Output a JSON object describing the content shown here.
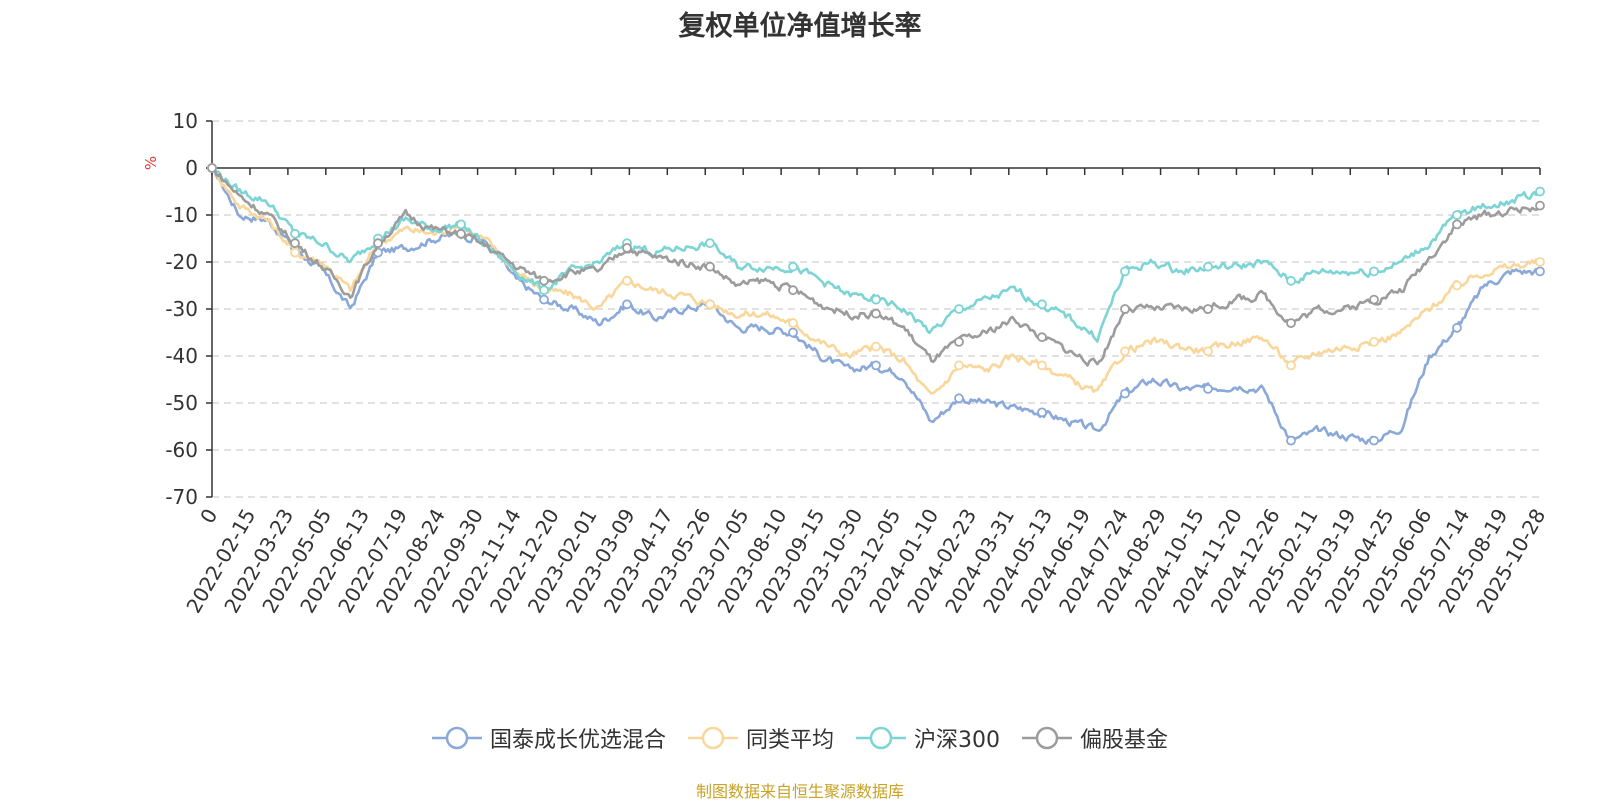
{
  "chart_data": {
    "type": "line",
    "title": "复权单位净值增长率",
    "ylabel": "%",
    "ylim": [
      -70,
      10
    ],
    "yticks": [
      10,
      0,
      -10,
      -20,
      -30,
      -40,
      -50,
      -60,
      -70
    ],
    "x_ticks": [
      "0",
      "2022-02-15",
      "2022-03-23",
      "2022-05-05",
      "2022-06-13",
      "2022-07-19",
      "2022-08-24",
      "2022-09-30",
      "2022-11-14",
      "2022-12-20",
      "2023-02-01",
      "2023-03-09",
      "2023-04-17",
      "2023-05-26",
      "2023-07-05",
      "2023-08-10",
      "2023-09-15",
      "2023-10-30",
      "2023-12-05",
      "2024-01-10",
      "2024-02-23",
      "2024-03-31",
      "2024-05-13",
      "2024-06-19",
      "2024-07-24",
      "2024-08-29",
      "2024-10-15",
      "2024-11-20",
      "2024-12-26",
      "2025-02-11",
      "2025-03-19",
      "2025-04-25",
      "2025-06-06",
      "2025-07-14",
      "2025-08-19",
      "2025-10-28"
    ],
    "series": [
      {
        "name": "国泰成长优选混合",
        "color": "#8aa9d8",
        "values": [
          0,
          -10,
          -11,
          -17,
          -22,
          -30,
          -18,
          -17,
          -15,
          -14,
          -16,
          -24,
          -28,
          -30,
          -33,
          -29,
          -32,
          -30,
          -29,
          -34,
          -34,
          -35,
          -40,
          -43,
          -42,
          -44,
          -54,
          -49,
          -50,
          -51,
          -52,
          -54,
          -56,
          -48,
          -45,
          -47,
          -47,
          -46,
          -47,
          -58,
          -56,
          -57,
          -58,
          -55,
          -40,
          -34,
          -25,
          -22,
          -22
        ]
      },
      {
        "name": "同类平均",
        "color": "#f9d79b",
        "values": [
          0,
          -8,
          -11,
          -18,
          -20,
          -26,
          -16,
          -13,
          -14,
          -12,
          -16,
          -22,
          -26,
          -27,
          -30,
          -24,
          -26,
          -27,
          -29,
          -31,
          -31,
          -33,
          -37,
          -40,
          -38,
          -41,
          -49,
          -42,
          -43,
          -40,
          -42,
          -45,
          -48,
          -39,
          -37,
          -38,
          -39,
          -37,
          -36,
          -42,
          -39,
          -38,
          -37,
          -35,
          -30,
          -25,
          -22,
          -21,
          -20
        ]
      },
      {
        "name": "沪深300",
        "color": "#7dd4d4",
        "values": [
          0,
          -5,
          -7,
          -14,
          -16,
          -20,
          -15,
          -11,
          -13,
          -12,
          -17,
          -22,
          -26,
          -22,
          -20,
          -16,
          -18,
          -17,
          -16,
          -21,
          -21,
          -21,
          -24,
          -27,
          -28,
          -30,
          -35,
          -30,
          -28,
          -26,
          -29,
          -32,
          -36,
          -22,
          -20,
          -22,
          -21,
          -21,
          -20,
          -24,
          -22,
          -22,
          -22,
          -20,
          -16,
          -10,
          -8,
          -7,
          -5
        ]
      },
      {
        "name": "偏股基金",
        "color": "#9c9c9c",
        "values": [
          0,
          -6,
          -10,
          -16,
          -21,
          -27,
          -16,
          -10,
          -13,
          -14,
          -17,
          -21,
          -24,
          -22,
          -22,
          -17,
          -19,
          -20,
          -21,
          -25,
          -24,
          -26,
          -29,
          -31,
          -31,
          -34,
          -41,
          -37,
          -35,
          -32,
          -36,
          -39,
          -42,
          -30,
          -30,
          -30,
          -30,
          -28,
          -27,
          -33,
          -30,
          -30,
          -28,
          -26,
          -19,
          -12,
          -10,
          -9,
          -8
        ]
      }
    ]
  },
  "source_text": "制图数据来自恒生聚源数据库"
}
